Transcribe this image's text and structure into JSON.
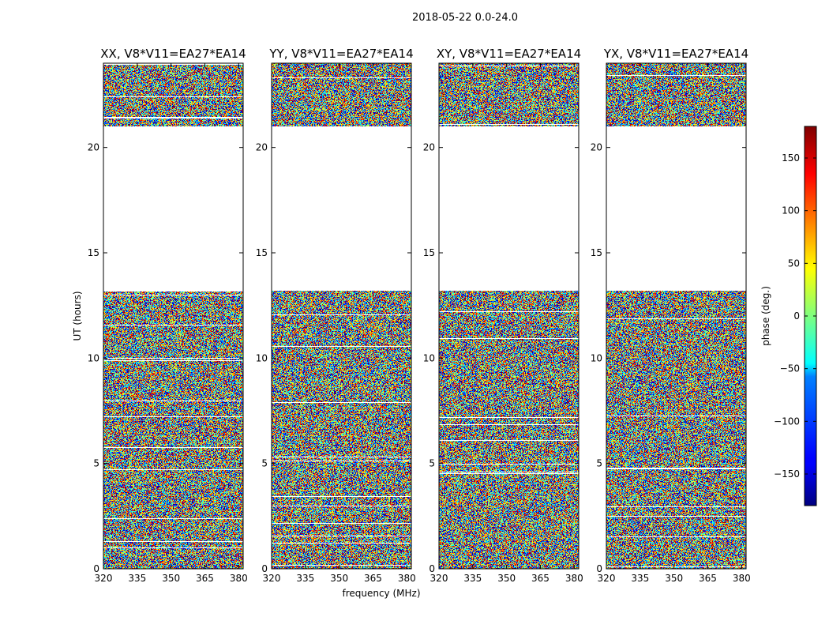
{
  "figure": {
    "suptitle": "2018-05-22 0.0-24.0"
  },
  "chart_data": {
    "type": "heatmap",
    "suptitle": "2018-05-22 0.0-24.0",
    "xlabel": "frequency (MHz)",
    "ylabel": "UT (hours)",
    "xlim": [
      320,
      382
    ],
    "ylim": [
      0,
      24
    ],
    "xticks": [
      "320",
      "335",
      "350",
      "365",
      "380"
    ],
    "yticks": [
      "0",
      "5",
      "10",
      "15",
      "20"
    ],
    "colormap": "jet",
    "colorbar": {
      "label": "phase (deg.)",
      "range": [
        -180,
        180
      ],
      "ticks": [
        "−150",
        "−100",
        "−50",
        "0",
        "50",
        "100",
        "150"
      ]
    },
    "panels": [
      {
        "title": "XX, V8*V11=EA27*EA14"
      },
      {
        "title": "YY, V8*V11=EA27*EA14"
      },
      {
        "title": "XY, V8*V11=EA27*EA14"
      },
      {
        "title": "YX, V8*V11=EA27*EA14"
      }
    ],
    "data_ranges_hours": [
      [
        0,
        13.2
      ],
      [
        21.0,
        24.0
      ]
    ],
    "colors": {
      "jet_start": "#00007f",
      "jet_end": "#7f0000"
    }
  }
}
